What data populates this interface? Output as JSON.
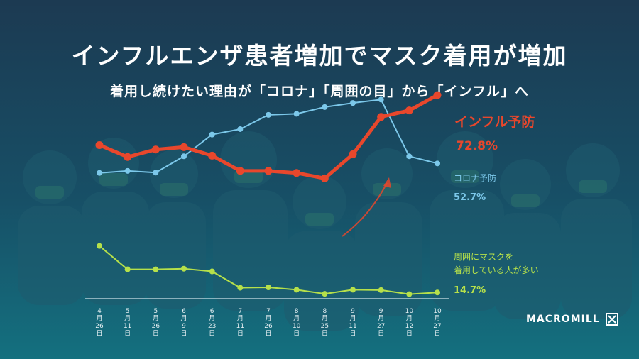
{
  "title": "インフルエンザ患者増加でマスク着用が増加",
  "subtitle": "着用し続けたい理由が「コロナ」「周囲の目」から「インフル」へ",
  "logo_text": "MACROMILL",
  "chart_data": {
    "type": "line",
    "categories": [
      [
        "4",
        "月",
        "26",
        "日"
      ],
      [
        "5",
        "月",
        "11",
        "日"
      ],
      [
        "5",
        "月",
        "26",
        "日"
      ],
      [
        "6",
        "月",
        "9",
        "日"
      ],
      [
        "6",
        "月",
        "23",
        "日"
      ],
      [
        "7",
        "月",
        "11",
        "日"
      ],
      [
        "7",
        "月",
        "26",
        "日"
      ],
      [
        "8",
        "月",
        "10",
        "日"
      ],
      [
        "8",
        "月",
        "25",
        "日"
      ],
      [
        "9",
        "月",
        "11",
        "日"
      ],
      [
        "9",
        "月",
        "27",
        "日"
      ],
      [
        "10",
        "月",
        "12",
        "日"
      ],
      [
        "10",
        "月",
        "27",
        "日"
      ]
    ],
    "series": [
      {
        "name": "インフル予防",
        "label": "72.8%",
        "color": "#e8472c",
        "values": [
          58.1,
          54.6,
          56.8,
          57.5,
          55.0,
          50.5,
          50.5,
          49.9,
          48.3,
          55.4,
          66.4,
          68.3,
          72.8
        ]
      },
      {
        "name": "コロナ予防",
        "label": "52.7%",
        "color": "#7cc8ea",
        "values": [
          49.9,
          50.5,
          50.0,
          54.8,
          61.2,
          62.8,
          67.0,
          67.3,
          69.3,
          70.5,
          71.5,
          54.8,
          52.7
        ]
      },
      {
        "name_lines": [
          "周囲にマスクを",
          "着用している人が多い"
        ],
        "label": "14.7%",
        "color": "#b6e04a",
        "values": [
          28.4,
          21.5,
          21.5,
          21.7,
          20.9,
          16.1,
          16.2,
          15.5,
          14.3,
          15.5,
          15.4,
          14.2,
          14.7
        ]
      }
    ]
  }
}
